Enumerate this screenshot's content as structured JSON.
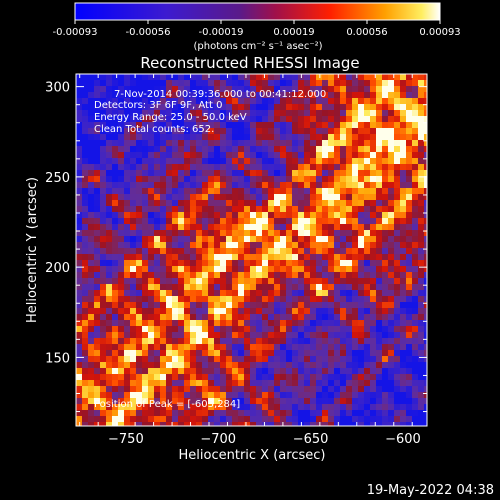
{
  "colorbar": {
    "tick_labels": [
      "-0.00093",
      "-0.00056",
      "-0.00019",
      "0.00019",
      "0.00056",
      "0.00093"
    ],
    "unit_label": "(photons cm⁻² s⁻¹ asec⁻²)",
    "range": [
      -0.00093,
      0.00093
    ]
  },
  "annotations": {
    "time_range": "7-Nov-2014 00:39:36.000 to 00:41:12.000",
    "detectors": "Detectors: 3F 6F 9F, Att 0",
    "energy_range": "Energy Range: 25.0 - 50.0 keV",
    "algorithm": "Clean     Total counts: 652.",
    "peak": "Position of Peak = [-603,284]"
  },
  "footer_timestamp": "19-May-2022 04:38",
  "chart_data": {
    "type": "heatmap",
    "title": "Reconstructed RHESSI Image",
    "xlabel": "Heliocentric X (arcsec)",
    "ylabel": "Heliocentric Y (arcsec)",
    "xlim": [
      -777,
      -587
    ],
    "ylim": [
      112,
      307
    ],
    "x_ticks": [
      -750,
      -700,
      -650,
      -600
    ],
    "y_ticks": [
      150,
      200,
      250,
      300
    ],
    "x_tick_labels": [
      "−750",
      "−700",
      "−650",
      "−600"
    ],
    "y_tick_labels": [
      "150",
      "200",
      "250",
      "300"
    ],
    "peak_position": [
      -603,
      284
    ],
    "colormap": "blue-purple-red-yellow-white"
  }
}
